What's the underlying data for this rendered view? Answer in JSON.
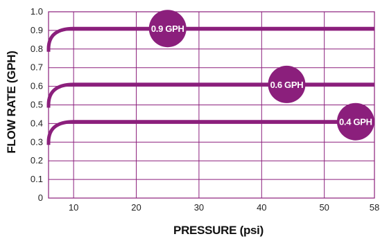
{
  "chart_data": {
    "type": "line",
    "xlabel": "PRESSURE (psi)",
    "ylabel": "FLOW RATE (GPH)",
    "xlim": [
      6,
      58
    ],
    "ylim": [
      0,
      1.0
    ],
    "x_ticks": [
      10,
      20,
      30,
      40,
      50,
      58
    ],
    "x_tick_labels": [
      "10",
      "20",
      "30",
      "40",
      "50",
      "58"
    ],
    "y_ticks": [
      0,
      0.1,
      0.2,
      0.3,
      0.4,
      0.5,
      0.6,
      0.7,
      0.8,
      0.9,
      1.0
    ],
    "y_tick_labels": [
      "0",
      "0.1",
      "0.2",
      "0.3",
      "0.4",
      "0.5",
      "0.6",
      "0.7",
      "0.8",
      "0.9",
      "1.0"
    ],
    "grid": true,
    "line_color": "#8b1f7c",
    "grid_color": "#8b1f7c",
    "series": [
      {
        "name": "0.9 GPH",
        "label_x": 25,
        "x": [
          6,
          7,
          8,
          9,
          10,
          58
        ],
        "y": [
          0.8,
          0.87,
          0.9,
          0.91,
          0.91,
          0.91
        ]
      },
      {
        "name": "0.6 GPH",
        "label_x": 44,
        "x": [
          6,
          7,
          8,
          9,
          10,
          58
        ],
        "y": [
          0.5,
          0.57,
          0.6,
          0.61,
          0.61,
          0.61
        ]
      },
      {
        "name": "0.4 GPH",
        "label_x": 55,
        "x": [
          6,
          7,
          8,
          9,
          10,
          58
        ],
        "y": [
          0.3,
          0.37,
          0.4,
          0.41,
          0.41,
          0.41
        ]
      }
    ]
  }
}
